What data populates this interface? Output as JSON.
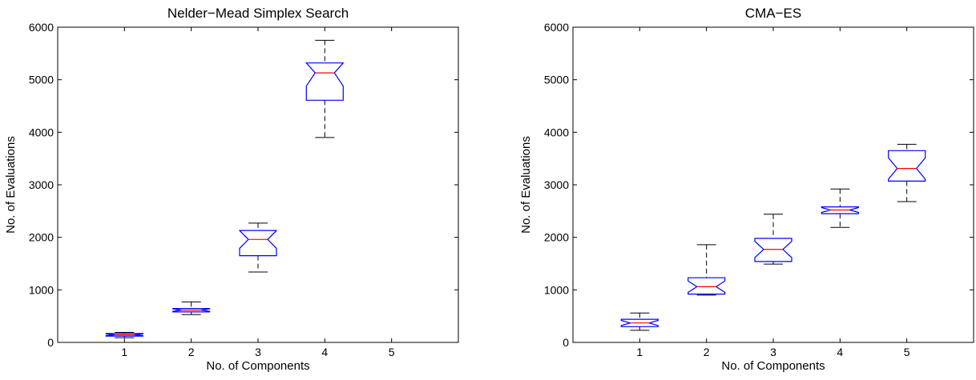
{
  "chart_data": [
    {
      "type": "box",
      "title": "Nelder−Mead Simplex Search",
      "xlabel": "No. of Components",
      "ylabel": "No. of Evaluations",
      "categories": [
        "1",
        "2",
        "3",
        "4",
        "5"
      ],
      "ylim": [
        0,
        6000
      ],
      "yticks": [
        "0",
        "1000",
        "2000",
        "3000",
        "4000",
        "5000",
        "6000"
      ],
      "grid": false,
      "notched": true,
      "colors": {
        "box": "#0000ff",
        "median": "#ff0000",
        "whisker": "#000000"
      },
      "boxes": [
        {
          "category": "1",
          "whisker_low": 90,
          "q1": 120,
          "median": 145,
          "q3": 170,
          "whisker_high": 190
        },
        {
          "category": "2",
          "whisker_low": 530,
          "q1": 580,
          "median": 615,
          "q3": 645,
          "whisker_high": 770
        },
        {
          "category": "3",
          "whisker_low": 1340,
          "q1": 1650,
          "median": 1960,
          "q3": 2130,
          "whisker_high": 2270
        },
        {
          "category": "4",
          "whisker_low": 3900,
          "q1": 4610,
          "median": 5130,
          "q3": 5320,
          "whisker_high": 5750
        },
        null
      ]
    },
    {
      "type": "box",
      "title": "CMA−ES",
      "xlabel": "No. of Components",
      "ylabel": "No. of Evaluations",
      "categories": [
        "1",
        "2",
        "3",
        "4",
        "5"
      ],
      "ylim": [
        0,
        6000
      ],
      "yticks": [
        "0",
        "1000",
        "2000",
        "3000",
        "4000",
        "5000",
        "6000"
      ],
      "grid": false,
      "notched": true,
      "colors": {
        "box": "#0000ff",
        "median": "#ff0000",
        "whisker": "#000000"
      },
      "boxes": [
        {
          "category": "1",
          "whisker_low": 230,
          "q1": 300,
          "median": 370,
          "q3": 440,
          "whisker_high": 560
        },
        {
          "category": "2",
          "whisker_low": 900,
          "q1": 920,
          "median": 1060,
          "q3": 1230,
          "whisker_high": 1860
        },
        {
          "category": "3",
          "whisker_low": 1490,
          "q1": 1540,
          "median": 1770,
          "q3": 1980,
          "whisker_high": 2440
        },
        {
          "category": "4",
          "whisker_low": 2190,
          "q1": 2450,
          "median": 2520,
          "q3": 2580,
          "whisker_high": 2920
        },
        {
          "category": "5",
          "whisker_low": 2680,
          "q1": 3070,
          "median": 3310,
          "q3": 3650,
          "whisker_high": 3770
        }
      ]
    }
  ]
}
